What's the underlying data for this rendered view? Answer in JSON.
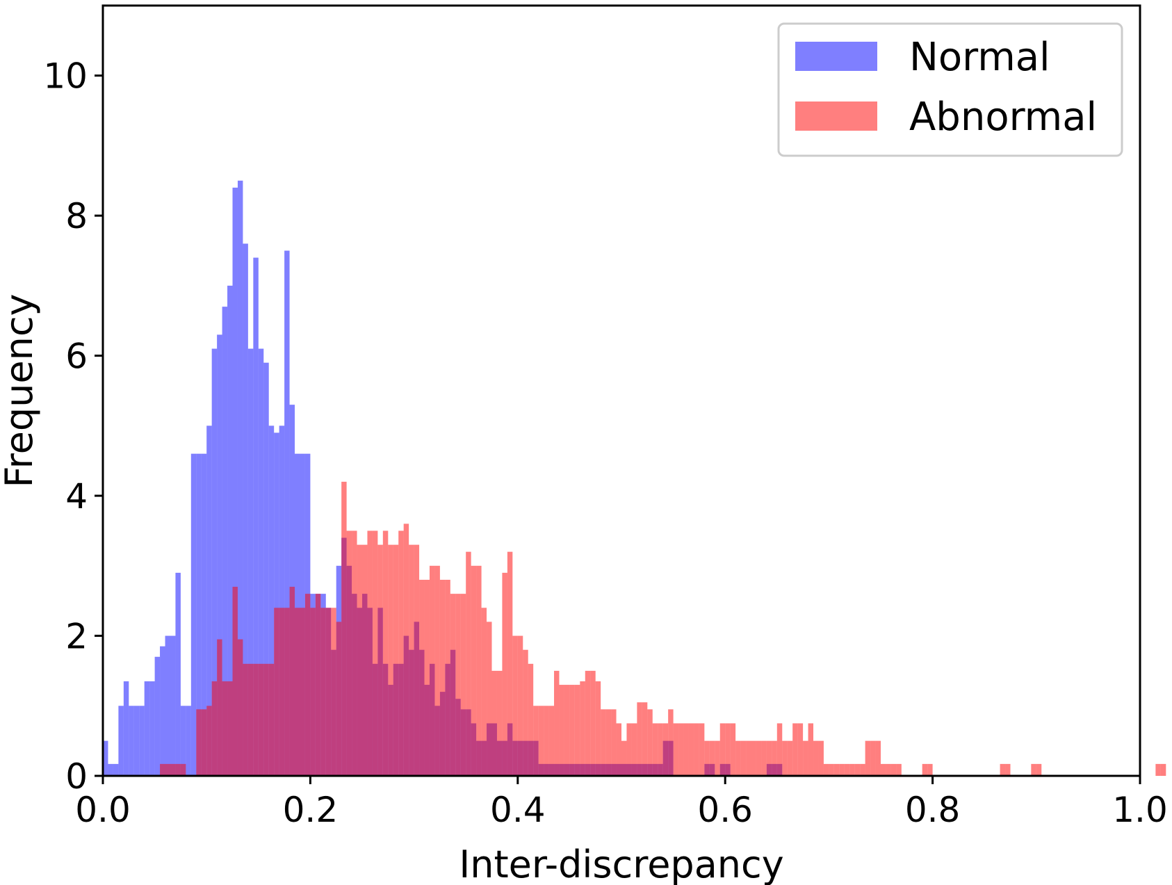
{
  "chart_data": {
    "type": "histogram",
    "xlabel": "Inter-discrepancy",
    "ylabel": "Frequency",
    "xlim": [
      0.0,
      1.0
    ],
    "ylim": [
      0,
      11
    ],
    "xticks": [
      "0.0",
      "0.2",
      "0.4",
      "0.6",
      "0.8",
      "1.0"
    ],
    "yticks": [
      "0",
      "2",
      "4",
      "6",
      "8",
      "10"
    ],
    "bin_width": 0.005,
    "legend_position": "top-right",
    "series": [
      {
        "name": "Normal",
        "color": "#0000ff",
        "opacity": 0.5,
        "values": [
          0.5,
          0.17,
          0.17,
          1.0,
          1.35,
          1.0,
          1.0,
          1.0,
          1.35,
          1.35,
          1.7,
          1.85,
          2.0,
          2.0,
          2.9,
          1.0,
          1.0,
          4.6,
          4.6,
          4.6,
          5.0,
          6.1,
          6.3,
          6.7,
          7.0,
          8.4,
          8.5,
          7.6,
          6.1,
          7.4,
          6.1,
          5.9,
          5.0,
          4.9,
          5.0,
          7.5,
          5.3,
          4.6,
          4.6,
          4.6,
          2.6,
          2.6,
          2.6,
          2.4,
          1.8,
          3.0,
          3.4,
          3.0,
          2.6,
          2.4,
          2.6,
          2.4,
          1.6,
          2.4,
          1.6,
          1.3,
          1.6,
          1.6,
          2.0,
          1.8,
          2.2,
          1.8,
          1.3,
          1.6,
          1.0,
          1.2,
          1.6,
          1.8,
          1.1,
          0.95,
          0.95,
          0.75,
          0.5,
          0.5,
          0.75,
          0.75,
          0.5,
          0.5,
          0.75,
          0.5,
          0.5,
          0.5,
          0.5,
          0.5,
          0.17,
          0.17,
          0.17,
          0.17,
          0.17,
          0.17,
          0.17,
          0.17,
          0.17,
          0.17,
          0.17,
          0.17,
          0.17,
          0.17,
          0.17,
          0.17,
          0.17,
          0.17,
          0.17,
          0.17,
          0.17,
          0.17,
          0.17,
          0.17,
          0.5,
          0.5,
          0,
          0,
          0,
          0,
          0,
          0,
          0.17,
          0.17,
          0,
          0.17,
          0.17,
          0,
          0,
          0,
          0,
          0,
          0,
          0,
          0.17,
          0.17,
          0.17,
          0,
          0,
          0,
          0,
          0,
          0,
          0,
          0,
          0,
          0,
          0,
          0,
          0,
          0,
          0,
          0,
          0,
          0,
          0,
          0,
          0,
          0,
          0,
          0,
          0,
          0,
          0,
          0,
          0,
          0,
          0,
          0,
          0,
          0,
          0,
          0,
          0,
          0,
          0,
          0,
          0,
          0,
          0,
          0,
          0,
          0,
          0,
          0,
          0,
          0,
          0,
          0,
          0,
          0,
          0,
          0,
          0,
          0,
          0,
          0,
          0,
          0,
          0,
          0,
          0,
          0,
          0,
          0,
          0,
          0,
          0,
          0,
          0,
          0,
          0,
          0,
          0,
          0,
          0,
          0,
          0,
          0,
          0,
          0,
          0,
          0,
          0,
          0,
          0
        ]
      },
      {
        "name": "Abnormal",
        "color": "#ff0000",
        "opacity": 0.5,
        "values": [
          0,
          0,
          0,
          0,
          0,
          0,
          0,
          0,
          0,
          0,
          0,
          0.17,
          0.17,
          0.17,
          0.17,
          0.17,
          0,
          0,
          0.95,
          0.95,
          1.0,
          1.35,
          1.95,
          1.35,
          1.35,
          2.7,
          1.95,
          1.6,
          1.6,
          1.6,
          1.6,
          1.6,
          1.6,
          2.4,
          2.4,
          2.4,
          2.7,
          2.4,
          2.4,
          2.6,
          2.4,
          2.6,
          2.4,
          2.4,
          2.4,
          2.2,
          4.2,
          3.5,
          3.5,
          3.3,
          3.3,
          3.5,
          3.5,
          3.3,
          3.5,
          3.3,
          3.3,
          3.5,
          3.6,
          3.3,
          3.3,
          2.8,
          2.8,
          3.0,
          3.0,
          2.8,
          2.8,
          2.6,
          2.6,
          2.6,
          3.2,
          3.0,
          3.0,
          2.4,
          2.2,
          1.5,
          1.5,
          2.9,
          3.2,
          2.0,
          2.0,
          1.8,
          1.6,
          1.0,
          1.0,
          1.0,
          1.0,
          1.5,
          1.3,
          1.3,
          1.3,
          1.3,
          1.35,
          1.5,
          1.5,
          1.35,
          0.95,
          0.95,
          0.95,
          0.75,
          0.5,
          0.75,
          0.75,
          1.05,
          1.05,
          0.95,
          0.75,
          0.75,
          0.75,
          0.95,
          0.75,
          0.75,
          0.75,
          0.75,
          0.75,
          0.75,
          0.5,
          0.5,
          0.5,
          0.75,
          0.75,
          0.75,
          0.5,
          0.5,
          0.5,
          0.5,
          0.5,
          0.5,
          0.5,
          0.5,
          0.75,
          0.5,
          0.5,
          0.75,
          0.75,
          0.5,
          0.75,
          0.5,
          0.5,
          0.17,
          0.17,
          0.17,
          0.17,
          0.17,
          0.17,
          0.17,
          0.17,
          0.5,
          0.5,
          0.5,
          0.17,
          0.17,
          0.17,
          0.17,
          0,
          0,
          0,
          0,
          0.17,
          0.17,
          0,
          0,
          0,
          0,
          0,
          0,
          0,
          0,
          0,
          0,
          0,
          0,
          0,
          0.17,
          0.17,
          0,
          0,
          0,
          0,
          0.17,
          0.17,
          0,
          0,
          0,
          0,
          0,
          0,
          0,
          0,
          0,
          0,
          0,
          0,
          0,
          0,
          0,
          0,
          0,
          0,
          0,
          0,
          0,
          0,
          0.17,
          0.17,
          0,
          0
        ]
      }
    ]
  }
}
